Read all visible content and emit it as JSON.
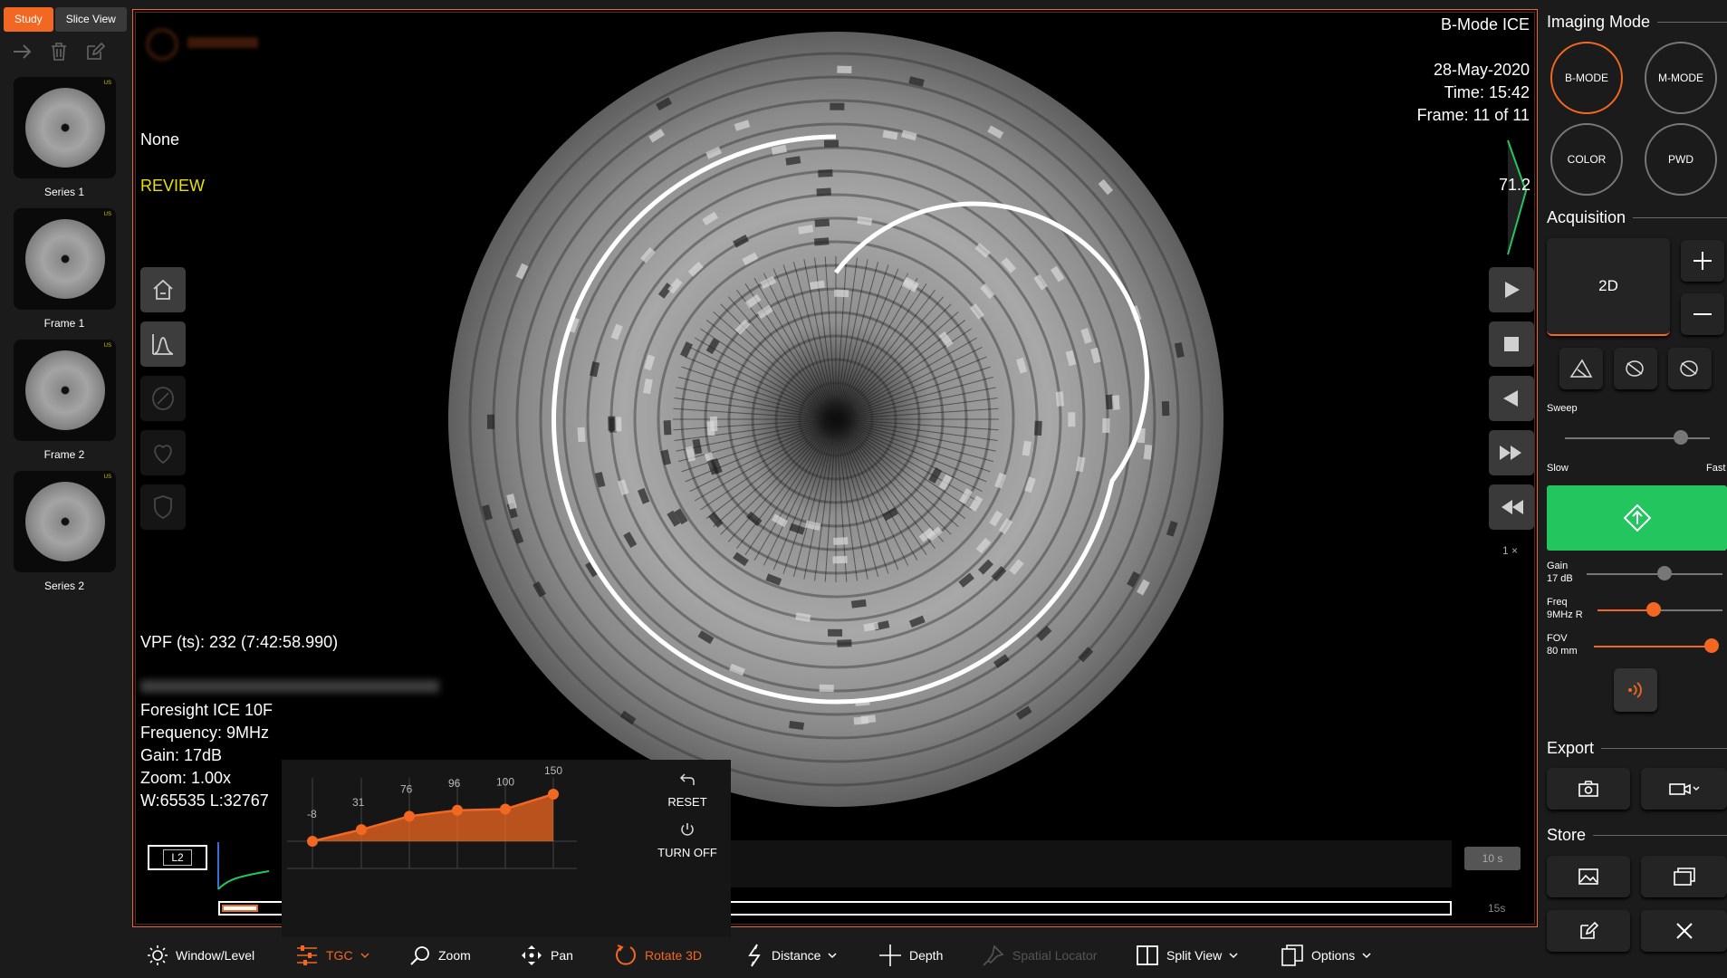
{
  "left": {
    "tabs": [
      {
        "label": "Study"
      },
      {
        "label": "Slice View"
      }
    ],
    "thumbnails": [
      {
        "label": "Series 1",
        "badge": "US"
      },
      {
        "label": "Frame 1",
        "badge": "US"
      },
      {
        "label": "Frame 2",
        "badge": "US"
      },
      {
        "label": "Series 2",
        "badge": "US"
      }
    ]
  },
  "viewport": {
    "mode_title": "B-Mode ICE",
    "date": "28-May-2020",
    "time": "Time: 15:42",
    "frame": "Frame: 11 of 11",
    "depth_readout": "71.2",
    "preset": "None",
    "state": "REVIEW",
    "vpf": "VPF (ts): 232 (7:42:58.990)",
    "device": "Foresight ICE 10F",
    "frequency": "Frequency: 9MHz",
    "gain": "Gain: 17dB",
    "zoom": "Zoom: 1.00x",
    "window_level": "W:65535 L:32767",
    "speed": "1 ×",
    "tag_l2": "L2",
    "time_10s": "10 s",
    "time_15s": "15s"
  },
  "tgc": {
    "values": [
      -8,
      31,
      76,
      96,
      100,
      150
    ],
    "value_labels": [
      "-8",
      "31",
      "76",
      "96",
      "100",
      "150"
    ],
    "reset_label": "RESET",
    "turn_off_label": "TURN OFF"
  },
  "toolbar": {
    "window_level": "Window/Level",
    "tgc": "TGC",
    "zoom": "Zoom",
    "pan": "Pan",
    "rotate3d": "Rotate 3D",
    "distance": "Distance",
    "depth": "Depth",
    "spatial_locator": "Spatial Locator",
    "split_view": "Split View",
    "options": "Options"
  },
  "right": {
    "imaging_mode_title": "Imaging Mode",
    "modes": [
      "B-MODE",
      "M-MODE",
      "COLOR",
      "PWD"
    ],
    "acquisition_title": "Acquisition",
    "acq_mode": "2D",
    "sweep_label": "Sweep",
    "sweep_slow": "Slow",
    "sweep_fast": "Fast",
    "sweep_level": 0.8,
    "gain_label": "Gain",
    "gain_value": "17 dB",
    "gain_level": 0.57,
    "freq_label": "Freq",
    "freq_value": "9MHz R",
    "freq_level": 0.45,
    "fov_label": "FOV",
    "fov_value": "80 mm",
    "fov_level": 1.0,
    "export_title": "Export",
    "store_title": "Store",
    "accent": "#f26722",
    "go_color": "#22c55e"
  }
}
